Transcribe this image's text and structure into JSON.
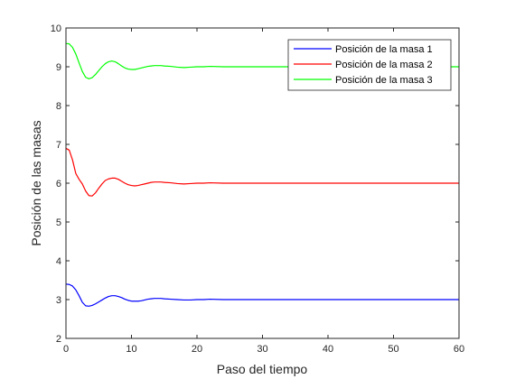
{
  "chart_data": {
    "type": "line",
    "title": "",
    "xlabel": "Paso del tiempo",
    "ylabel": "Posición de las masas",
    "xlim": [
      0,
      60
    ],
    "ylim": [
      2,
      10
    ],
    "xticks": [
      0,
      10,
      20,
      30,
      40,
      50,
      60
    ],
    "yticks": [
      2,
      3,
      4,
      5,
      6,
      7,
      8,
      9,
      10
    ],
    "grid": false,
    "legend_position": "top-right",
    "series": [
      {
        "name": "Posición de la masa 1",
        "color": "#0000ff",
        "points": [
          [
            0,
            3.4
          ],
          [
            0.5,
            3.39
          ],
          [
            1,
            3.35
          ],
          [
            1.5,
            3.25
          ],
          [
            2,
            3.1
          ],
          [
            2.5,
            2.93
          ],
          [
            3,
            2.84
          ],
          [
            3.5,
            2.83
          ],
          [
            4,
            2.85
          ],
          [
            4.5,
            2.89
          ],
          [
            5,
            2.94
          ],
          [
            5.5,
            2.99
          ],
          [
            6,
            3.04
          ],
          [
            6.5,
            3.08
          ],
          [
            7,
            3.1
          ],
          [
            7.5,
            3.1
          ],
          [
            8,
            3.08
          ],
          [
            8.5,
            3.05
          ],
          [
            9,
            3.01
          ],
          [
            9.5,
            2.98
          ],
          [
            10,
            2.96
          ],
          [
            10.5,
            2.96
          ],
          [
            11,
            2.96
          ],
          [
            11.5,
            2.97
          ],
          [
            12,
            2.99
          ],
          [
            12.5,
            3.01
          ],
          [
            13,
            3.02
          ],
          [
            13.5,
            3.03
          ],
          [
            14,
            3.03
          ],
          [
            14.5,
            3.03
          ],
          [
            15,
            3.02
          ],
          [
            16,
            3.01
          ],
          [
            17,
            3.0
          ],
          [
            18,
            2.99
          ],
          [
            19,
            2.99
          ],
          [
            20,
            3.0
          ],
          [
            21,
            3.0
          ],
          [
            22,
            3.01
          ],
          [
            24,
            3.0
          ],
          [
            27,
            3.0
          ],
          [
            30,
            3.0
          ],
          [
            40,
            3.0
          ],
          [
            50,
            3.0
          ],
          [
            60,
            3.0
          ]
        ]
      },
      {
        "name": "Posición de la masa 2",
        "color": "#ff0000",
        "points": [
          [
            0,
            6.9
          ],
          [
            0.5,
            6.85
          ],
          [
            1,
            6.6
          ],
          [
            1.5,
            6.25
          ],
          [
            2,
            6.1
          ],
          [
            2.5,
            5.98
          ],
          [
            3,
            5.8
          ],
          [
            3.5,
            5.68
          ],
          [
            4,
            5.67
          ],
          [
            4.5,
            5.75
          ],
          [
            5,
            5.87
          ],
          [
            5.5,
            5.98
          ],
          [
            6,
            6.07
          ],
          [
            6.5,
            6.11
          ],
          [
            7,
            6.13
          ],
          [
            7.5,
            6.13
          ],
          [
            8,
            6.1
          ],
          [
            8.5,
            6.05
          ],
          [
            9,
            6.0
          ],
          [
            9.5,
            5.96
          ],
          [
            10,
            5.94
          ],
          [
            10.5,
            5.93
          ],
          [
            11,
            5.94
          ],
          [
            11.5,
            5.96
          ],
          [
            12,
            5.98
          ],
          [
            12.5,
            6.0
          ],
          [
            13,
            6.02
          ],
          [
            13.5,
            6.03
          ],
          [
            14,
            6.03
          ],
          [
            14.5,
            6.03
          ],
          [
            15,
            6.02
          ],
          [
            16,
            6.01
          ],
          [
            17,
            5.99
          ],
          [
            18,
            5.98
          ],
          [
            19,
            5.99
          ],
          [
            20,
            6.0
          ],
          [
            21,
            6.0
          ],
          [
            22,
            6.01
          ],
          [
            24,
            6.0
          ],
          [
            27,
            6.0
          ],
          [
            30,
            6.0
          ],
          [
            40,
            6.0
          ],
          [
            50,
            6.0
          ],
          [
            60,
            6.0
          ]
        ]
      },
      {
        "name": "Posición de la masa 3",
        "color": "#00ff00",
        "points": [
          [
            0,
            9.6
          ],
          [
            0.5,
            9.59
          ],
          [
            1,
            9.5
          ],
          [
            1.5,
            9.33
          ],
          [
            2,
            9.1
          ],
          [
            2.5,
            8.88
          ],
          [
            3,
            8.73
          ],
          [
            3.5,
            8.69
          ],
          [
            4,
            8.72
          ],
          [
            4.5,
            8.8
          ],
          [
            5,
            8.9
          ],
          [
            5.5,
            9.0
          ],
          [
            6,
            9.08
          ],
          [
            6.5,
            9.13
          ],
          [
            7,
            9.15
          ],
          [
            7.5,
            9.13
          ],
          [
            8,
            9.08
          ],
          [
            8.5,
            9.02
          ],
          [
            9,
            8.97
          ],
          [
            9.5,
            8.94
          ],
          [
            10,
            8.93
          ],
          [
            10.5,
            8.93
          ],
          [
            11,
            8.95
          ],
          [
            11.5,
            8.97
          ],
          [
            12,
            8.99
          ],
          [
            12.5,
            9.01
          ],
          [
            13,
            9.02
          ],
          [
            13.5,
            9.03
          ],
          [
            14,
            9.03
          ],
          [
            14.5,
            9.03
          ],
          [
            15,
            9.02
          ],
          [
            16,
            9.01
          ],
          [
            17,
            8.99
          ],
          [
            18,
            8.98
          ],
          [
            19,
            8.99
          ],
          [
            20,
            9.0
          ],
          [
            21,
            9.0
          ],
          [
            22,
            9.01
          ],
          [
            24,
            9.0
          ],
          [
            27,
            9.0
          ],
          [
            30,
            9.0
          ],
          [
            40,
            9.0
          ],
          [
            50,
            9.0
          ],
          [
            60,
            9.0
          ]
        ]
      }
    ]
  }
}
